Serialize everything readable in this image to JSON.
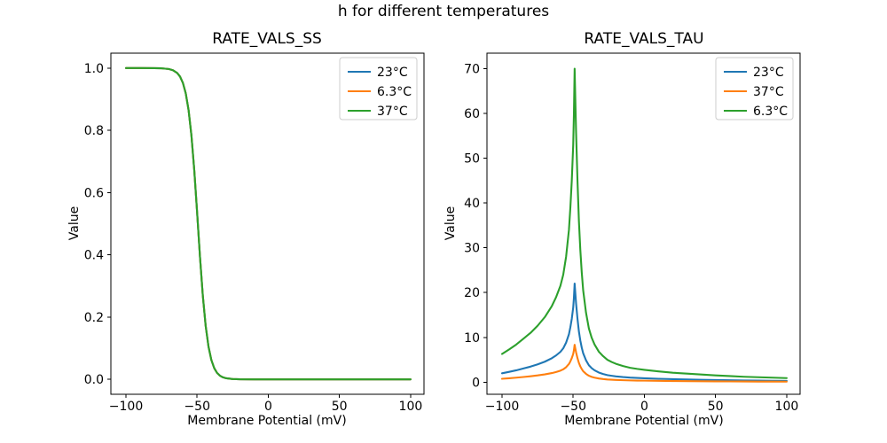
{
  "figure": {
    "title": "h for different temperatures",
    "background": "#ffffff",
    "text_color": "#000000"
  },
  "colors": {
    "series_blue": "#1f77b4",
    "series_orange": "#ff7f0e",
    "series_green": "#2ca02c",
    "legend_border": "#cccccc",
    "spine": "#000000"
  },
  "chart_data": [
    {
      "type": "line",
      "title": "RATE_VALS_SS",
      "xlabel": "Membrane Potential (mV)",
      "ylabel": "Value",
      "grid": false,
      "legend_position": "upper right",
      "xlim": [
        -110.6,
        109.4
      ],
      "ylim": [
        -0.048,
        1.048
      ],
      "xtick_values": [
        -100,
        -50,
        0,
        50,
        100
      ],
      "xtick_labels": [
        "−100",
        "−50",
        "0",
        "50",
        "100"
      ],
      "ytick_values": [
        0,
        0.2,
        0.4,
        0.6,
        0.8,
        1.0
      ],
      "ytick_labels": [
        "0.0",
        "0.2",
        "0.4",
        "0.6",
        "0.8",
        "1.0"
      ],
      "x": [
        -100,
        -90,
        -80,
        -75,
        -70,
        -67,
        -64,
        -62,
        -60,
        -58,
        -56,
        -54,
        -52,
        -50,
        -48,
        -46,
        -44,
        -42,
        -40,
        -38,
        -36,
        -34,
        -32,
        -30,
        -25,
        -20,
        -10,
        0,
        25,
        50,
        75,
        100
      ],
      "series": [
        {
          "name": "23°C",
          "color": "#1f77b4",
          "values": [
            1.0,
            1.0,
            0.9998,
            0.9993,
            0.9971,
            0.9933,
            0.9844,
            0.9727,
            0.9526,
            0.919,
            0.865,
            0.7835,
            0.6714,
            0.5357,
            0.3945,
            0.2689,
            0.172,
            0.105,
            0.0622,
            0.0361,
            0.0207,
            0.0118,
            0.0067,
            0.0038,
            0.0009,
            0.0002,
            0.0,
            0.0,
            0.0,
            0.0,
            0.0,
            0.0
          ]
        },
        {
          "name": "6.3°C",
          "color": "#ff7f0e",
          "values": [
            1.0,
            1.0,
            0.9998,
            0.9993,
            0.9971,
            0.9933,
            0.9844,
            0.9727,
            0.9526,
            0.919,
            0.865,
            0.7835,
            0.6714,
            0.5357,
            0.3945,
            0.2689,
            0.172,
            0.105,
            0.0622,
            0.0361,
            0.0207,
            0.0118,
            0.0067,
            0.0038,
            0.0009,
            0.0002,
            0.0,
            0.0,
            0.0,
            0.0,
            0.0,
            0.0
          ]
        },
        {
          "name": "37°C",
          "color": "#2ca02c",
          "values": [
            1.0,
            1.0,
            0.9998,
            0.9993,
            0.9971,
            0.9933,
            0.9844,
            0.9727,
            0.9526,
            0.919,
            0.865,
            0.7835,
            0.6714,
            0.5357,
            0.3945,
            0.2689,
            0.172,
            0.105,
            0.0622,
            0.0361,
            0.0207,
            0.0118,
            0.0067,
            0.0038,
            0.0009,
            0.0002,
            0.0,
            0.0,
            0.0,
            0.0,
            0.0,
            0.0
          ]
        }
      ]
    },
    {
      "type": "line",
      "title": "RATE_VALS_TAU",
      "xlabel": "Membrane Potential (mV)",
      "ylabel": "Value",
      "grid": false,
      "legend_position": "upper right",
      "xlim": [
        -110.6,
        109.4
      ],
      "ylim": [
        -2.71,
        73.46
      ],
      "xtick_values": [
        -100,
        -50,
        0,
        50,
        100
      ],
      "xtick_labels": [
        "−100",
        "−50",
        "0",
        "50",
        "100"
      ],
      "ytick_values": [
        0,
        10,
        20,
        30,
        40,
        50,
        60,
        70
      ],
      "ytick_labels": [
        "0",
        "10",
        "20",
        "30",
        "40",
        "50",
        "60",
        "70"
      ],
      "x": [
        -100,
        -95,
        -90,
        -85,
        -80,
        -75,
        -70,
        -65,
        -62,
        -59,
        -57,
        -55,
        -53,
        -52,
        -51,
        -50,
        -49.5,
        -49,
        -48.5,
        -48,
        -47,
        -46,
        -45,
        -44,
        -43,
        -41,
        -39,
        -37,
        -35,
        -32,
        -29,
        -26,
        -23,
        -20,
        -15,
        -10,
        -5,
        0,
        10,
        20,
        30,
        40,
        50,
        60,
        70,
        80,
        90,
        100
      ],
      "series": [
        {
          "name": "23°C",
          "color": "#1f77b4",
          "values": [
            1.98,
            2.3,
            2.64,
            3.05,
            3.46,
            3.96,
            4.56,
            5.35,
            5.97,
            6.76,
            7.55,
            8.81,
            10.69,
            12.26,
            14.15,
            16.67,
            18.87,
            22.01,
            19.81,
            17.61,
            14.15,
            11.32,
            9.28,
            7.7,
            6.45,
            4.87,
            3.77,
            3.11,
            2.64,
            2.14,
            1.82,
            1.57,
            1.42,
            1.29,
            1.13,
            1.01,
            0.93,
            0.86,
            0.75,
            0.66,
            0.6,
            0.53,
            0.47,
            0.42,
            0.38,
            0.35,
            0.31,
            0.28
          ]
        },
        {
          "name": "37°C",
          "color": "#ff7f0e",
          "values": [
            0.75,
            0.87,
            1.0,
            1.15,
            1.31,
            1.5,
            1.73,
            2.02,
            2.26,
            2.56,
            2.86,
            3.33,
            4.05,
            4.64,
            5.36,
            6.31,
            7.14,
            8.33,
            7.5,
            6.67,
            5.36,
            4.29,
            3.51,
            2.92,
            2.44,
            1.85,
            1.43,
            1.18,
            1.0,
            0.81,
            0.69,
            0.6,
            0.54,
            0.49,
            0.43,
            0.38,
            0.35,
            0.33,
            0.29,
            0.25,
            0.23,
            0.2,
            0.18,
            0.16,
            0.14,
            0.13,
            0.12,
            0.11
          ]
        },
        {
          "name": "6.3°C",
          "color": "#2ca02c",
          "values": [
            6.3,
            7.3,
            8.4,
            9.7,
            11.0,
            12.6,
            14.5,
            17.0,
            19.0,
            21.5,
            24.0,
            28.0,
            34.0,
            39.0,
            45.0,
            53.0,
            60.0,
            70.0,
            63.0,
            56.0,
            45.0,
            36.0,
            29.5,
            24.5,
            20.5,
            15.5,
            12.0,
            9.9,
            8.4,
            6.8,
            5.8,
            5.0,
            4.5,
            4.1,
            3.6,
            3.2,
            2.95,
            2.75,
            2.4,
            2.1,
            1.9,
            1.7,
            1.5,
            1.35,
            1.2,
            1.1,
            1.0,
            0.9
          ]
        }
      ]
    }
  ]
}
